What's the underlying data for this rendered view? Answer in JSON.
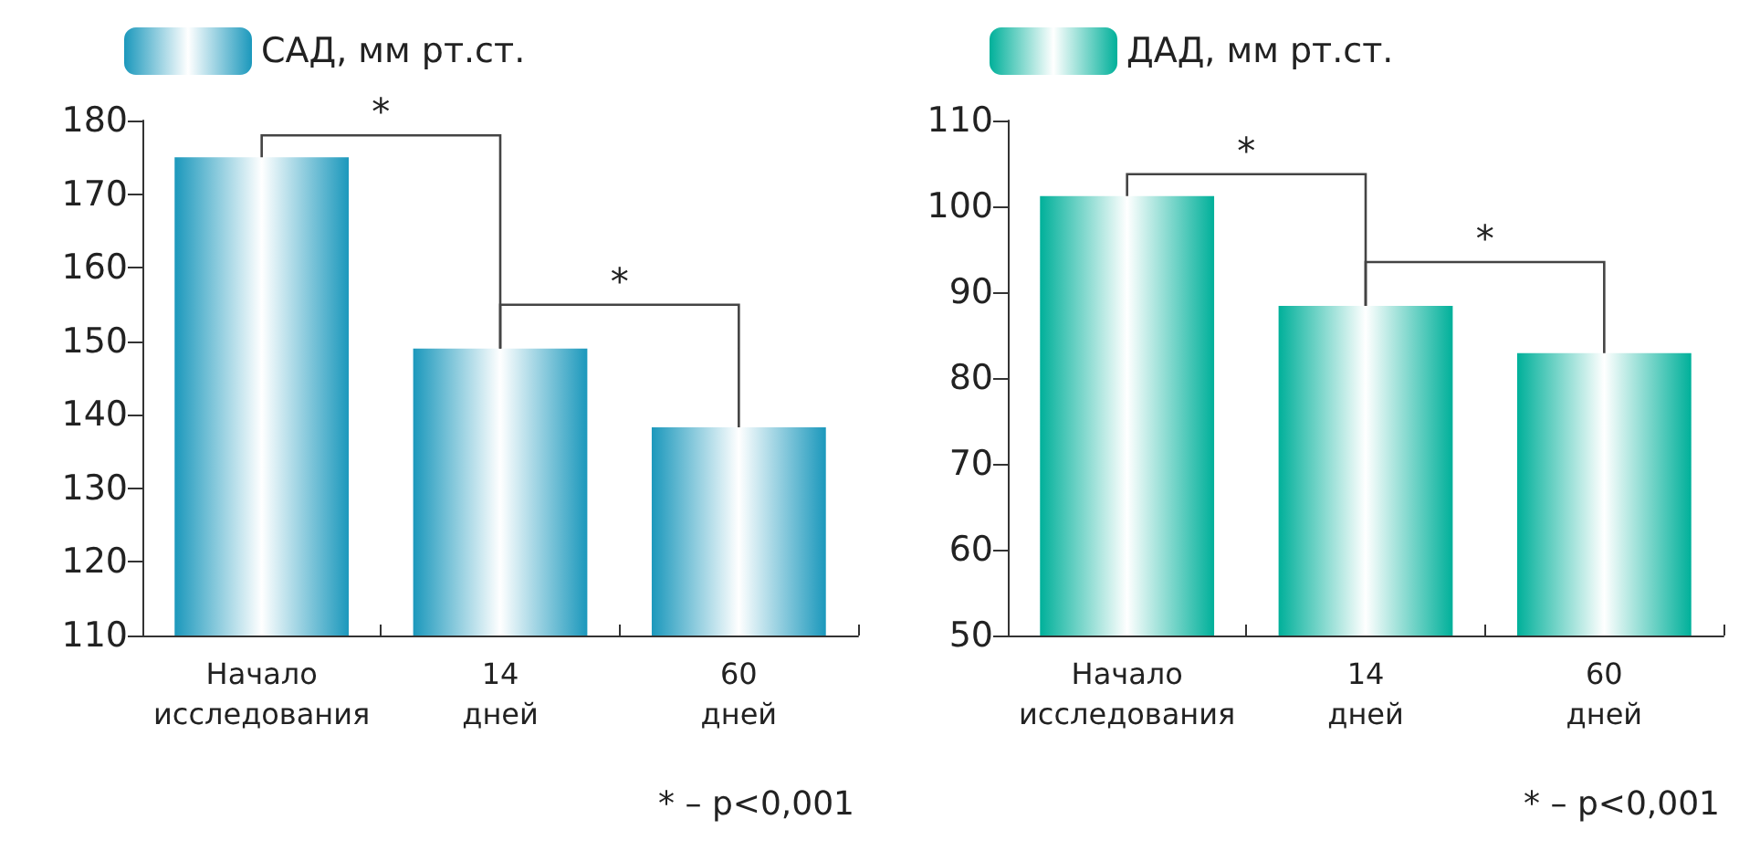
{
  "chart_data": [
    {
      "type": "bar",
      "categories": [
        "Начало исследования",
        "14 дней",
        "60 дней"
      ],
      "series": [
        {
          "name": "САД, мм рт.ст.",
          "color": "#1b98bc",
          "values": [
            175,
            149,
            138.3
          ]
        }
      ],
      "ylim": [
        110,
        180
      ],
      "yticks": [
        110,
        120,
        130,
        140,
        150,
        160,
        170,
        180
      ],
      "grid": false,
      "legend": "top left",
      "annotations": [
        "*",
        "*",
        "* – p<0,001"
      ]
    },
    {
      "type": "bar",
      "categories": [
        "Начало исследования",
        "14 дней",
        "60 дней"
      ],
      "series": [
        {
          "name": "ДАД, мм рт.ст.",
          "color": "#00b09a",
          "values": [
            101.2,
            88.4,
            82.9
          ]
        }
      ],
      "ylim": [
        50,
        110
      ],
      "yticks": [
        50,
        60,
        70,
        80,
        90,
        100,
        110
      ],
      "grid": false,
      "legend": "top left",
      "annotations": [
        "*",
        "*",
        "* – p<0,001"
      ]
    }
  ]
}
